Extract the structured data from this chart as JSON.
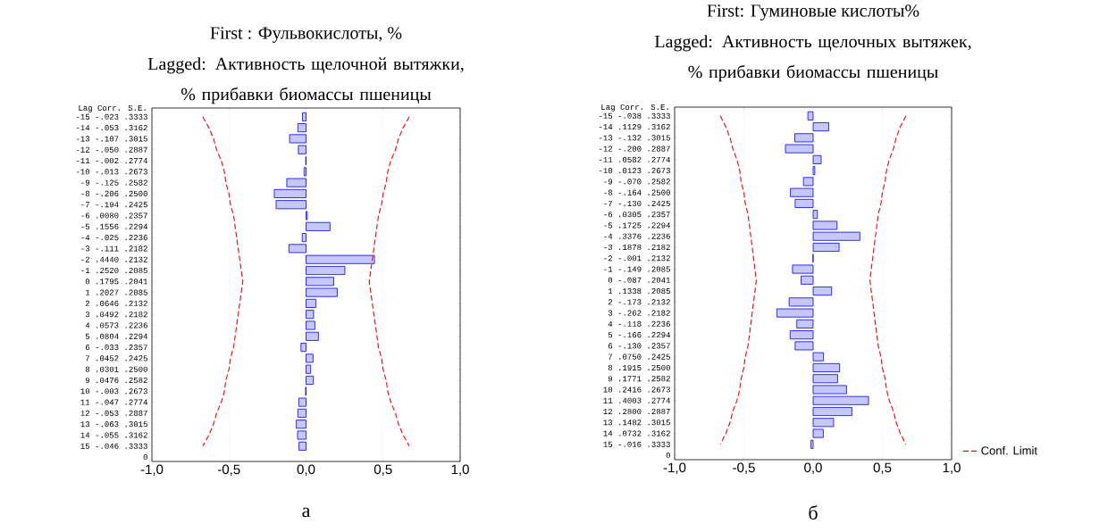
{
  "chart_data": [
    {
      "type": "bar",
      "orientation": "horizontal",
      "title": "First : Фульвокислоты, %",
      "subtitle": "Lagged: Активность щелочной вытяжки, % прибавки биомассы пшеницы",
      "ylabel": "Lag  Corr. S.E.",
      "annotations": [
        "а"
      ],
      "categories": [
        "-15 -.023 .3333",
        "-14 -.053 .3162",
        "-13 -.107 .3015",
        "-12 -.050 .2887",
        "-11 -.002 .2774",
        "-10 -.013 .2673",
        "-9 -.125 .2582",
        "-8 -.206 .2500",
        "-7 -.194 .2425",
        "-6 .0080 .2357",
        "-5 .1556 .2294",
        "-4 -.025 .2236",
        "-3 -.111 .2182",
        "-2 .4440 .2132",
        "-1 .2520 .2085",
        "0 .1795 .2041",
        "1 .2027 .2085",
        "2 .0646 .2132",
        "3 .0492 .2182",
        "4 .0573 .2236",
        "5 .0804 .2294",
        "6 -.033 .2357",
        "7 .0452 .2425",
        "8 .0301 .2500",
        "9 .0476 .2582",
        "10 -.003 .2673",
        "11 -.047 .2774",
        "12 -.053 .2887",
        "13 -.063 .3015",
        "14 -.055 .3162",
        "15 -.046 .3333",
        "0"
      ],
      "series": [
        {
          "color": "#0000ff",
          "values": [
            -0.023,
            -0.053,
            -0.107,
            -0.05,
            -0.002,
            -0.013,
            -0.125,
            -0.206,
            -0.194,
            0.008,
            0.1556,
            -0.025,
            -0.111,
            0.444,
            0.252,
            0.1795,
            0.2027,
            0.0646,
            0.0492,
            0.0573,
            0.0804,
            -0.033,
            0.0452,
            0.0301,
            0.0476,
            -0.003,
            -0.047,
            -0.053,
            -0.063,
            -0.055,
            -0.046,
            null
          ]
        },
        {
          "type": "line",
          "color": "#ff0000",
          "line_style": "dashed",
          "values": [
            -0.67,
            -0.63,
            -0.6,
            -0.58,
            -0.55,
            -0.53,
            -0.52,
            -0.5,
            -0.49,
            -0.47,
            -0.46,
            -0.45,
            -0.44,
            -0.43,
            -0.42,
            -0.41,
            -0.42,
            -0.43,
            -0.44,
            -0.45,
            -0.46,
            -0.47,
            -0.49,
            -0.5,
            -0.52,
            -0.53,
            -0.55,
            -0.58,
            -0.6,
            -0.63,
            -0.67,
            null
          ]
        },
        {
          "type": "line",
          "color": "#ff0000",
          "line_style": "dashed",
          "values": [
            0.67,
            0.63,
            0.6,
            0.58,
            0.55,
            0.53,
            0.52,
            0.5,
            0.49,
            0.47,
            0.46,
            0.45,
            0.44,
            0.43,
            0.42,
            0.41,
            0.42,
            0.43,
            0.44,
            0.45,
            0.46,
            0.47,
            0.49,
            0.5,
            0.52,
            0.53,
            0.55,
            0.58,
            0.6,
            0.63,
            0.67,
            null
          ]
        }
      ],
      "xlim": [
        -1,
        1
      ],
      "xticks": [
        {
          "value": -1,
          "label": "-1,0"
        },
        {
          "value": -0.5,
          "label": "-0,5"
        },
        {
          "value": 0,
          "label": "0,0"
        },
        {
          "value": 0.5,
          "label": "0,5"
        },
        {
          "value": 1,
          "label": "1,0"
        }
      ],
      "grid": "x"
    },
    {
      "type": "bar",
      "orientation": "horizontal",
      "title": "First: Гуминовые кислоты%",
      "subtitle": "Lagged: Активность щелочных вытяжек, % прибавки биомассы пшеницы",
      "ylabel": "Lag  Corr. S.E.",
      "annotations": [
        "б"
      ],
      "categories": [
        "-15 -.038 .3333",
        "-14 .1129 .3162",
        "-13 -.132 .3015",
        "-12 -.200 .2887",
        "-11 .0582 .2774",
        "-10 .0123 .2673",
        "-9 -.070 .2582",
        "-8 -.164 .2500",
        "-7 -.130 .2425",
        "-6 .0305 .2357",
        "-5 .1725 .2294",
        "-4 .3376 .2236",
        "-3 .1878 .2182",
        "-2 -.001 .2132",
        "-1 -.149 .2085",
        "0 -.087 .2041",
        "1 .1338 .2085",
        "2 -.173 .2132",
        "3 -.262 .2182",
        "4 -.118 .2236",
        "5 -.166 .2294",
        "6 -.130 .2357",
        "7 .0750 .2425",
        "8 .1915 .2500",
        "9 .1771 .2582",
        "10 .2416 .2673",
        "11 .4003 .2774",
        "12 .2800 .2887",
        "13 .1482 .3015",
        "14 .0732 .3162",
        "15 -.016 .3333",
        "0"
      ],
      "series": [
        {
          "color": "#0000ff",
          "values": [
            -0.038,
            0.1129,
            -0.132,
            -0.2,
            0.0582,
            0.0123,
            -0.07,
            -0.164,
            -0.13,
            0.0305,
            0.1725,
            0.3376,
            0.1878,
            -0.001,
            -0.149,
            -0.087,
            0.1338,
            -0.173,
            -0.262,
            -0.118,
            -0.166,
            -0.13,
            0.075,
            0.1915,
            0.1771,
            0.2416,
            0.4003,
            0.28,
            0.1482,
            0.0732,
            -0.016,
            null
          ]
        },
        {
          "type": "line",
          "name": "Conf. Limit",
          "color": "#ff0000",
          "line_style": "dashed",
          "values": [
            -0.67,
            -0.63,
            -0.6,
            -0.58,
            -0.55,
            -0.53,
            -0.52,
            -0.5,
            -0.49,
            -0.47,
            -0.46,
            -0.45,
            -0.44,
            -0.43,
            -0.42,
            -0.41,
            -0.42,
            -0.43,
            -0.44,
            -0.45,
            -0.46,
            -0.47,
            -0.49,
            -0.5,
            -0.52,
            -0.53,
            -0.55,
            -0.58,
            -0.6,
            -0.63,
            -0.67,
            null
          ]
        },
        {
          "type": "line",
          "color": "#ff0000",
          "line_style": "dashed",
          "values": [
            0.67,
            0.63,
            0.6,
            0.58,
            0.55,
            0.53,
            0.52,
            0.5,
            0.49,
            0.47,
            0.46,
            0.45,
            0.44,
            0.43,
            0.42,
            0.41,
            0.42,
            0.43,
            0.44,
            0.45,
            0.46,
            0.47,
            0.49,
            0.5,
            0.52,
            0.53,
            0.55,
            0.58,
            0.6,
            0.63,
            0.67,
            null
          ]
        }
      ],
      "xlim": [
        -1,
        1
      ],
      "xticks": [
        {
          "value": -1,
          "label": "-1,0"
        },
        {
          "value": -0.5,
          "label": "-0,5"
        },
        {
          "value": 0,
          "label": "0,0"
        },
        {
          "value": 0.5,
          "label": "0,5"
        },
        {
          "value": 1,
          "label": "1,0"
        }
      ],
      "grid": "x",
      "legend": "bottom right"
    }
  ]
}
